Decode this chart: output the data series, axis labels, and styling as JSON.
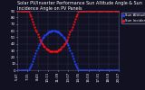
{
  "title": "Solar PV/Inverter Performance Sun Altitude Angle & Sun Incidence Angle on PV Panels",
  "background_color": "#111122",
  "plot_bg_color": "#111122",
  "grid_color": "#444466",
  "series": [
    {
      "label": "Sun Altitude Angle",
      "color": "#2244ff",
      "marker": ".",
      "markersize": 1.2,
      "x": [
        0,
        1,
        2,
        3,
        4,
        5,
        6,
        7,
        8,
        9,
        10,
        11,
        12,
        13,
        14,
        15,
        16,
        17,
        18,
        19,
        20,
        21,
        22,
        23,
        24,
        25,
        26,
        27,
        28,
        29,
        30,
        31,
        32,
        33,
        34,
        35,
        36,
        37,
        38,
        39,
        40,
        41,
        42,
        43,
        44,
        45,
        46,
        47,
        48,
        49,
        50,
        51,
        52,
        53,
        54,
        55,
        56,
        57,
        58,
        59,
        60,
        61,
        62,
        63,
        64,
        65,
        66,
        67,
        68,
        69,
        70,
        71,
        72,
        73,
        74,
        75,
        76,
        77,
        78,
        79,
        80,
        81,
        82,
        83,
        84,
        85,
        86,
        87,
        88,
        89,
        90,
        91,
        92,
        93,
        94,
        95,
        96,
        97,
        98,
        99,
        100
      ],
      "y": [
        0,
        0,
        0,
        0,
        0,
        0,
        0,
        0,
        0,
        0,
        0,
        2,
        4,
        7,
        10,
        14,
        18,
        22,
        26,
        30,
        34,
        38,
        41,
        44,
        47,
        49,
        51,
        53,
        55,
        56,
        57,
        58,
        59,
        59,
        60,
        60,
        60,
        60,
        59,
        59,
        58,
        57,
        56,
        55,
        53,
        51,
        49,
        47,
        44,
        41,
        38,
        34,
        30,
        26,
        22,
        18,
        14,
        10,
        7,
        4,
        2,
        0,
        0,
        0,
        0,
        0,
        0,
        0,
        0,
        0,
        0,
        0,
        0,
        0,
        0,
        0,
        0,
        0,
        0,
        0,
        0,
        0,
        0,
        0,
        0,
        0,
        0,
        0,
        0,
        0,
        0,
        0,
        0,
        0,
        0,
        0,
        0,
        0,
        0,
        0,
        0
      ]
    },
    {
      "label": "Sun Incidence Angle",
      "color": "#ff1111",
      "marker": ".",
      "markersize": 1.2,
      "x": [
        0,
        1,
        2,
        3,
        4,
        5,
        6,
        7,
        8,
        9,
        10,
        11,
        12,
        13,
        14,
        15,
        16,
        17,
        18,
        19,
        20,
        21,
        22,
        23,
        24,
        25,
        26,
        27,
        28,
        29,
        30,
        31,
        32,
        33,
        34,
        35,
        36,
        37,
        38,
        39,
        40,
        41,
        42,
        43,
        44,
        45,
        46,
        47,
        48,
        49,
        50,
        51,
        52,
        53,
        54,
        55,
        56,
        57,
        58,
        59,
        60,
        61,
        62,
        63,
        64,
        65,
        66,
        67,
        68,
        69,
        70,
        71,
        72,
        73,
        74,
        75,
        76,
        77,
        78,
        79,
        80,
        81,
        82,
        83,
        84,
        85,
        86,
        87,
        88,
        89,
        90,
        91,
        92,
        93,
        94,
        95,
        96,
        97,
        98,
        99,
        100
      ],
      "y": [
        90,
        90,
        90,
        90,
        90,
        90,
        90,
        90,
        90,
        90,
        90,
        88,
        85,
        82,
        78,
        74,
        70,
        66,
        62,
        58,
        54,
        50,
        47,
        44,
        41,
        39,
        37,
        35,
        33,
        32,
        31,
        30,
        29,
        29,
        28,
        28,
        28,
        28,
        29,
        29,
        30,
        31,
        32,
        33,
        35,
        37,
        39,
        41,
        44,
        47,
        50,
        54,
        58,
        62,
        66,
        70,
        74,
        78,
        82,
        85,
        88,
        90,
        90,
        90,
        90,
        90,
        90,
        90,
        90,
        90,
        90,
        90,
        90,
        90,
        90,
        90,
        90,
        90,
        90,
        90,
        90,
        90,
        90,
        90,
        90,
        90,
        90,
        90,
        90,
        90,
        90,
        90,
        90,
        90,
        90,
        90,
        90,
        90,
        90,
        90,
        90
      ]
    }
  ],
  "xlim": [
    0,
    100
  ],
  "ylim": [
    0,
    90
  ],
  "yticks": [
    0,
    10,
    20,
    30,
    40,
    50,
    60,
    70,
    80,
    90
  ],
  "xtick_labels": [
    "5:47",
    "7:15",
    "8:43",
    "10:11",
    "11:39",
    "13:07",
    "14:35",
    "16:03",
    "17:31",
    "18:59",
    "20:27"
  ],
  "title_fontsize": 3.5,
  "tick_fontsize": 2.8,
  "legend_fontsize": 2.8,
  "legend_labels": [
    "Sun Altitude Angle",
    "Sun Incidence Angle"
  ],
  "legend_colors": [
    "#2244ff",
    "#ff1111"
  ]
}
